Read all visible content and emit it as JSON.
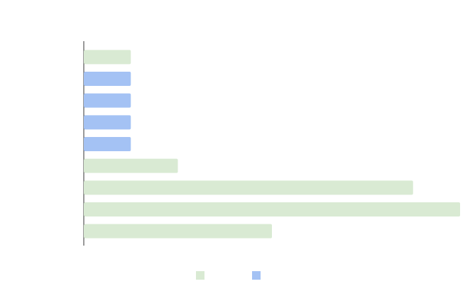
{
  "chart_data": {
    "type": "hbar",
    "categories": [
      null,
      null,
      null,
      null,
      null,
      null,
      null,
      null,
      null
    ],
    "series": [
      {
        "color": "#d9ead3",
        "values": [
          1,
          null,
          null,
          null,
          null,
          2,
          7,
          8,
          4
        ]
      },
      {
        "color": "#a4c2f4",
        "values": [
          null,
          1,
          1,
          1,
          1,
          null,
          null,
          null,
          null
        ]
      }
    ],
    "xlim": [
      0,
      8
    ],
    "legend": "bottom"
  }
}
